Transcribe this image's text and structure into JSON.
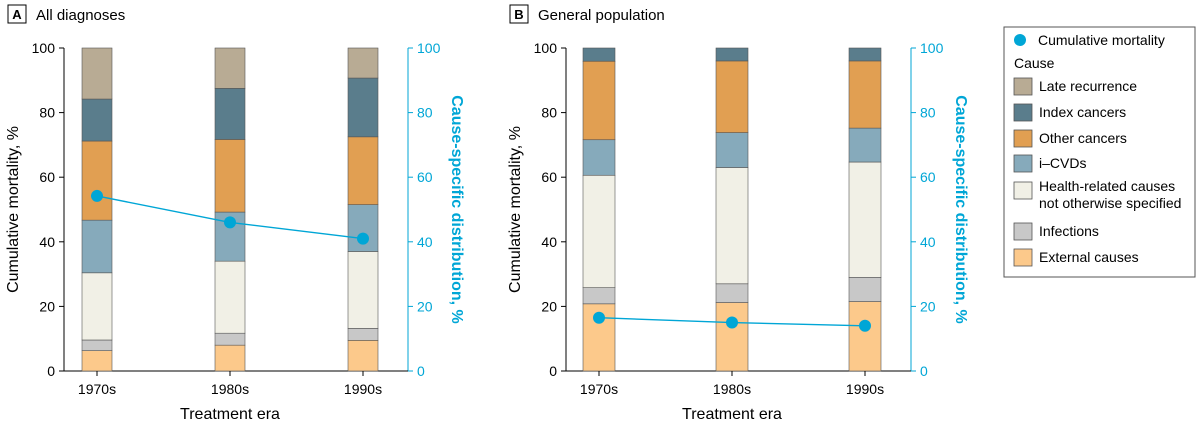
{
  "chart_data": [
    {
      "type": "bar",
      "panel_letter": "A",
      "title": "All diagnoses",
      "xlabel": "Treatment era",
      "ylabel": "Cumulative mortality, %",
      "y2label": "Cause-specific distribution, %",
      "ylim": [
        0,
        100
      ],
      "yticks": [
        "0",
        "20",
        "40",
        "60",
        "80",
        "100"
      ],
      "categories": [
        "1970s",
        "1980s",
        "1990s"
      ],
      "stacked": true,
      "series": [
        {
          "name": "External causes",
          "values": [
            6.3,
            8.0,
            9.5
          ]
        },
        {
          "name": "Infections",
          "values": [
            3.3,
            3.7,
            3.7
          ]
        },
        {
          "name": "Health-related causes not otherwise specified",
          "values": [
            20.8,
            22.3,
            23.8
          ]
        },
        {
          "name": "i–CVDs",
          "values": [
            16.3,
            15.2,
            14.5
          ]
        },
        {
          "name": "Other cancers",
          "values": [
            24.5,
            22.5,
            21.0
          ]
        },
        {
          "name": "Index cancers",
          "values": [
            13.0,
            15.8,
            18.2
          ]
        },
        {
          "name": "Late recurrence",
          "values": [
            15.8,
            12.5,
            9.3
          ]
        }
      ],
      "line": {
        "name": "Cumulative mortality",
        "values": [
          54.2,
          46.0,
          41.0
        ]
      }
    },
    {
      "type": "bar",
      "panel_letter": "B",
      "title": "General population",
      "xlabel": "Treatment era",
      "ylabel": "Cumulative mortality, %",
      "y2label": "Cause-specific distribution, %",
      "ylim": [
        0,
        100
      ],
      "yticks": [
        "0",
        "20",
        "40",
        "60",
        "80",
        "100"
      ],
      "categories": [
        "1970s",
        "1980s",
        "1990s"
      ],
      "stacked": true,
      "series": [
        {
          "name": "External causes",
          "values": [
            20.8,
            21.2,
            21.5
          ]
        },
        {
          "name": "Infections",
          "values": [
            5.0,
            5.8,
            7.5
          ]
        },
        {
          "name": "Health-related causes not otherwise specified",
          "values": [
            34.8,
            36.0,
            35.7
          ]
        },
        {
          "name": "i–CVDs",
          "values": [
            11.0,
            10.8,
            10.5
          ]
        },
        {
          "name": "Other cancers",
          "values": [
            24.3,
            22.2,
            20.8
          ]
        },
        {
          "name": "Index cancers",
          "values": [
            4.1,
            4.0,
            4.0
          ]
        },
        {
          "name": "Late recurrence",
          "values": [
            0,
            0,
            0
          ]
        }
      ],
      "line": {
        "name": "Cumulative mortality",
        "values": [
          16.5,
          15.0,
          14.0
        ]
      }
    }
  ],
  "legend": {
    "line_label": "Cumulative mortality",
    "cause_heading": "Cause",
    "items": [
      {
        "label": "Late recurrence",
        "color": "#b8ab94"
      },
      {
        "label": "Index cancers",
        "color": "#5a7d8c"
      },
      {
        "label": "Other cancers",
        "color": "#e19f52"
      },
      {
        "label": "i–CVDs",
        "color": "#86aabb"
      },
      {
        "label_lines": [
          "Health-related causes",
          "not otherwise specified"
        ],
        "color": "#f1f0e6"
      },
      {
        "label": "Infections",
        "color": "#c8c8c8"
      },
      {
        "label": "External causes",
        "color": "#fcc98b"
      }
    ]
  },
  "colors": {
    "line": "#00a6d6",
    "series": {
      "External causes": "#fcc98b",
      "Infections": "#c8c8c8",
      "Health-related causes not otherwise specified": "#f1f0e6",
      "i–CVDs": "#86aabb",
      "Other cancers": "#e19f52",
      "Index cancers": "#5a7d8c",
      "Late recurrence": "#b8ab94"
    }
  }
}
